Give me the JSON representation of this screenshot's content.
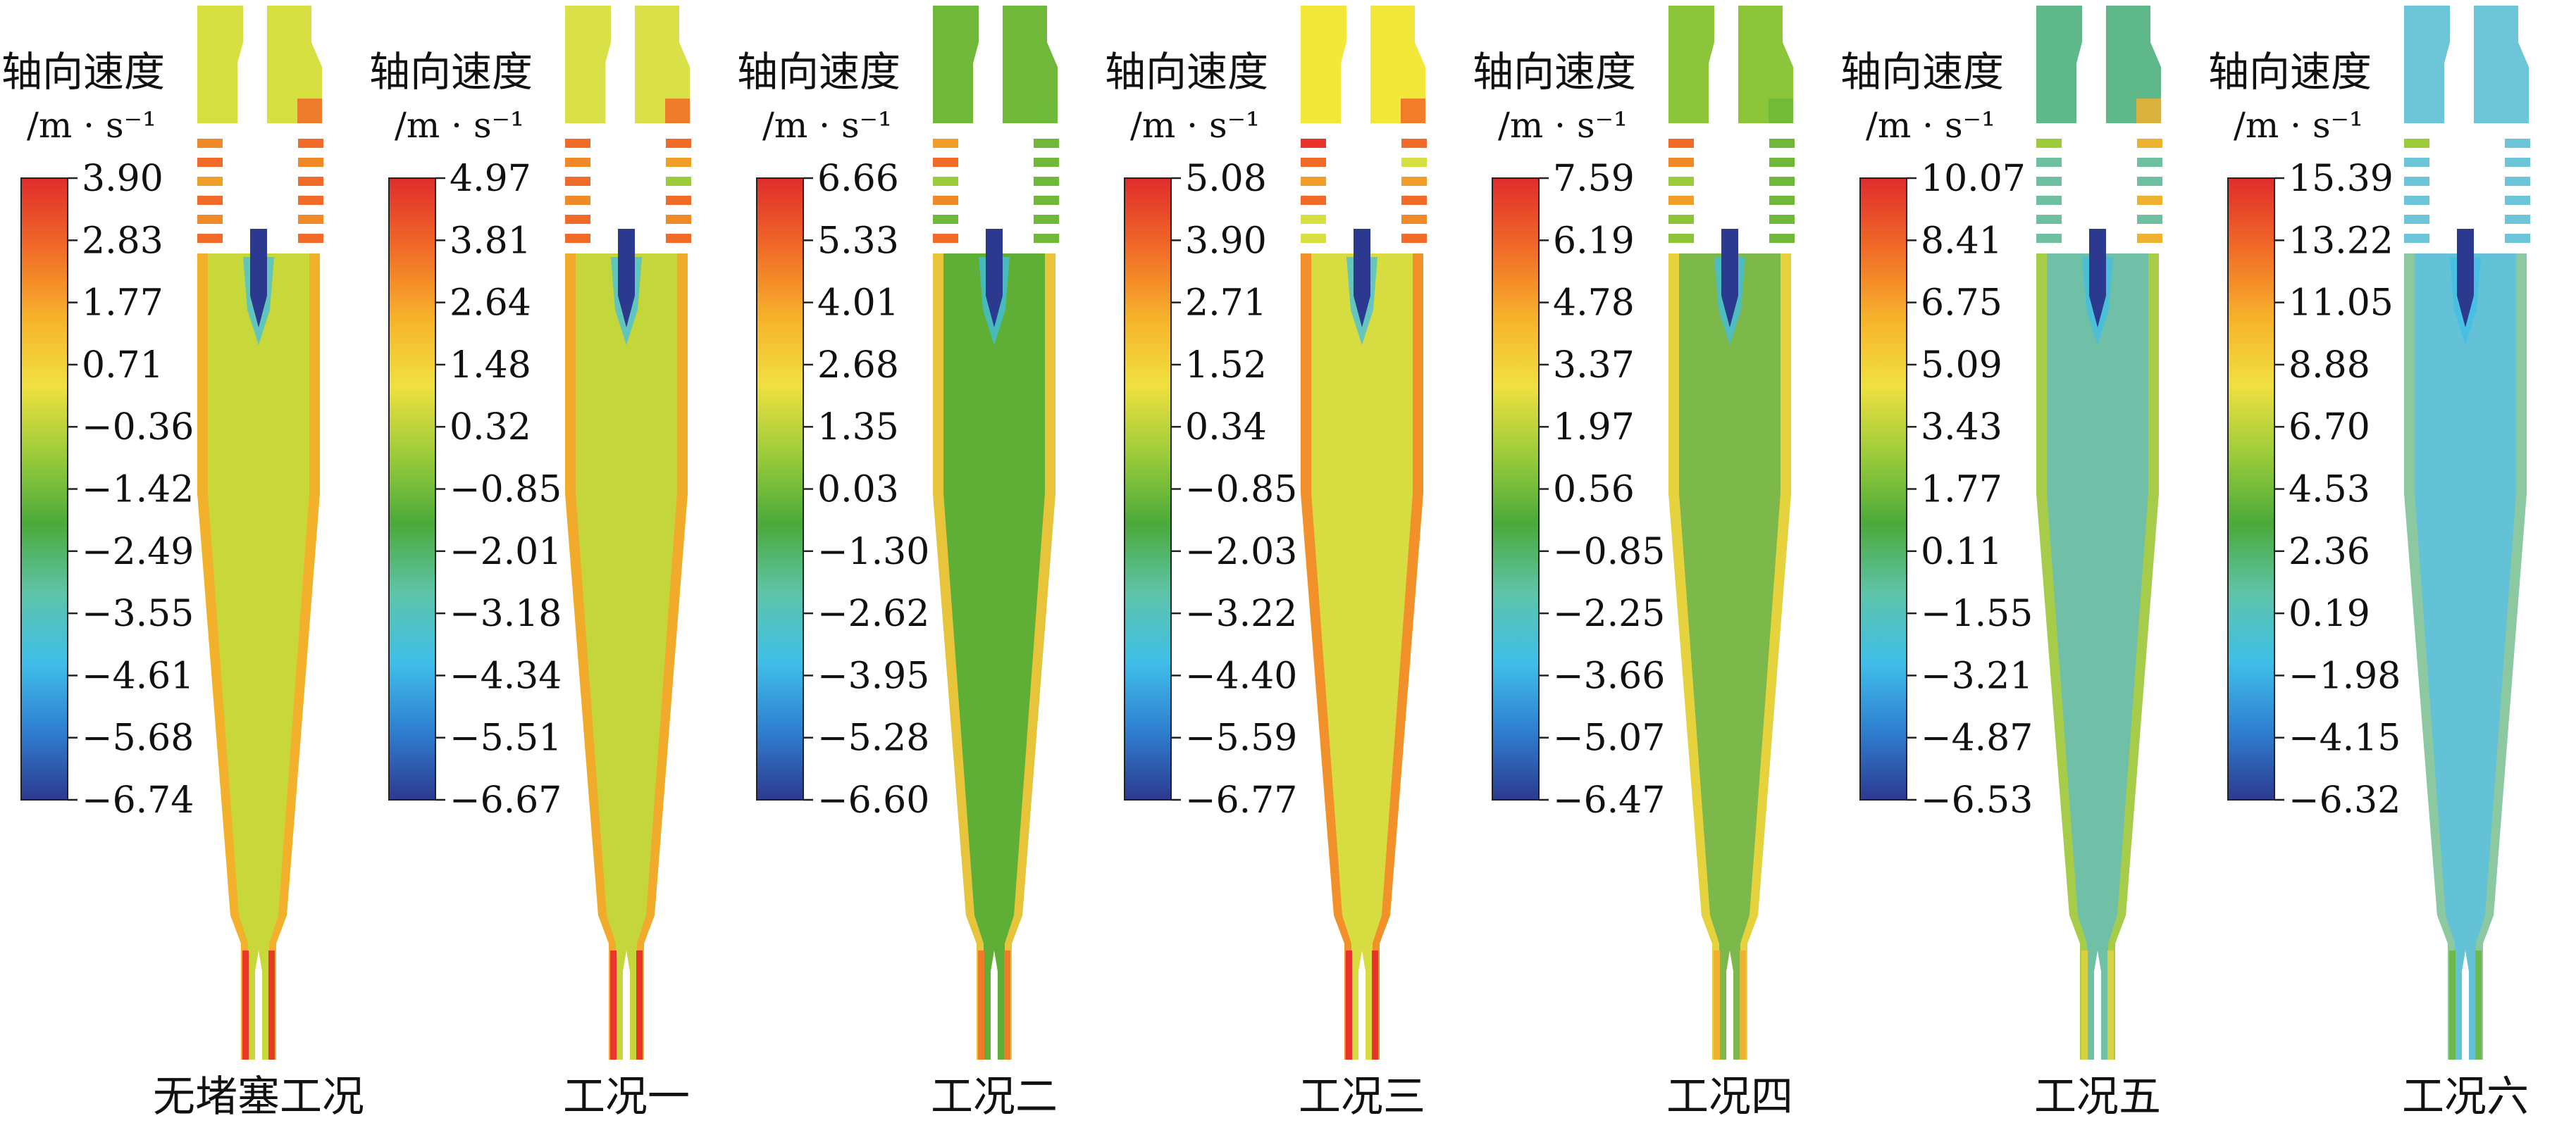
{
  "legend_title": "轴向速度",
  "legend_unit": "/m · s⁻¹",
  "colormap": [
    "#2b3a8f",
    "#2f7fd0",
    "#3fbfe8",
    "#5ec4a8",
    "#4aaa3a",
    "#9ccc3a",
    "#f0e040",
    "#f7b02a",
    "#f06a28",
    "#e02c2c"
  ],
  "panels": [
    {
      "label": "无堵塞工况",
      "ticks": [
        "3.90",
        "2.83",
        "1.77",
        "0.71",
        "−0.36",
        "−1.42",
        "−2.49",
        "−3.55",
        "−4.61",
        "−5.68",
        "−6.74"
      ],
      "body_color": "#c8d83a",
      "wall_color": "#f3b02a",
      "apex_color": "#e83a26",
      "inlet_color": "#d7e041",
      "top_color": "#d7e041",
      "slot_left": [
        "#f08a28",
        "#f06a28",
        "#f0a02a",
        "#f06a28",
        "#f08a28",
        "#f06a28"
      ],
      "slot_right": [
        "#f06a28",
        "#f08a28",
        "#f06a28",
        "#f06a28",
        "#f08a28",
        "#f06a28"
      ]
    },
    {
      "label": "工况一",
      "ticks": [
        "4.97",
        "3.81",
        "2.64",
        "1.48",
        "0.32",
        "−0.85",
        "−2.01",
        "−3.18",
        "−4.34",
        "−5.51",
        "−6.67"
      ],
      "body_color": "#c4d63c",
      "wall_color": "#f2aa2a",
      "apex_color": "#e8362a",
      "inlet_color": "#d9e048",
      "top_color": "#d9e048",
      "slot_left": [
        "#f06a28",
        "#f08a28",
        "#f06a28",
        "#f08a28",
        "#f06a28",
        "#f06a28"
      ],
      "slot_right": [
        "#f06a28",
        "#f0a02a",
        "#9ccc3a",
        "#f06a28",
        "#f08a28",
        "#f06a28"
      ]
    },
    {
      "label": "工况二",
      "ticks": [
        "6.66",
        "5.33",
        "4.01",
        "2.68",
        "1.35",
        "0.03",
        "−1.30",
        "−2.62",
        "−3.95",
        "−5.28",
        "−6.60"
      ],
      "body_color": "#5fae36",
      "wall_color": "#e8c43a",
      "apex_color": "#f07a2a",
      "inlet_color": "#6fb83a",
      "top_color": "#6fb83a",
      "slot_left": [
        "#f0a02a",
        "#f06a28",
        "#9ccc3a",
        "#f08a28",
        "#6fb83a",
        "#f06a28"
      ],
      "slot_right": [
        "#6fb83a",
        "#6fb83a",
        "#6fb83a",
        "#6fb83a",
        "#6fb83a",
        "#6fb83a"
      ]
    },
    {
      "label": "工况三",
      "ticks": [
        "5.08",
        "3.90",
        "2.71",
        "1.52",
        "0.34",
        "−0.85",
        "−2.03",
        "−3.22",
        "−4.40",
        "−5.59",
        "−6.77"
      ],
      "body_color": "#d7dc40",
      "wall_color": "#f2902a",
      "apex_color": "#e8322a",
      "inlet_color": "#f3e83a",
      "top_color": "#f3e83a",
      "slot_left": [
        "#e8322a",
        "#f06a28",
        "#f0a02a",
        "#f06a28",
        "#d7e041",
        "#d7e041"
      ],
      "slot_right": [
        "#f06a28",
        "#d7e041",
        "#f0a02a",
        "#f06a28",
        "#f08a28",
        "#f06a28"
      ]
    },
    {
      "label": "工况四",
      "ticks": [
        "7.59",
        "6.19",
        "4.78",
        "3.37",
        "1.97",
        "0.56",
        "−0.85",
        "−2.25",
        "−3.66",
        "−5.07",
        "−6.47"
      ],
      "body_color": "#7cb84a",
      "wall_color": "#e6d23c",
      "apex_color": "#f0b030",
      "inlet_color": "#8cc43a",
      "top_color": "#8cc43a",
      "slot_left": [
        "#f06a28",
        "#f08a28",
        "#9ccc3a",
        "#f0a02a",
        "#8cc43a",
        "#8cc43a"
      ],
      "slot_right": [
        "#6fb83a",
        "#6fb83a",
        "#6fb83a",
        "#6fb83a",
        "#6fb83a",
        "#6fb83a"
      ]
    },
    {
      "label": "工况五",
      "ticks": [
        "10.07",
        "8.41",
        "6.75",
        "5.09",
        "3.43",
        "1.77",
        "0.11",
        "−1.55",
        "−3.21",
        "−4.87",
        "−6.53"
      ],
      "body_color": "#70c0a8",
      "wall_color": "#a6cc4a",
      "apex_color": "#d8d240",
      "inlet_color": "#5fb88a",
      "top_color": "#5fb88a",
      "slot_left": [
        "#9ccc3a",
        "#6fc0a0",
        "#6fc0a0",
        "#6fc0a0",
        "#6fc0a0",
        "#6fc0a0"
      ],
      "slot_right": [
        "#f0b030",
        "#6fc0a0",
        "#6fc0a0",
        "#f0b030",
        "#6fc0a0",
        "#f0b030"
      ]
    },
    {
      "label": "工况六",
      "ticks": [
        "15.39",
        "13.22",
        "11.05",
        "8.88",
        "6.70",
        "4.53",
        "2.36",
        "0.19",
        "−1.98",
        "−4.15",
        "−6.32"
      ],
      "body_color": "#64c2d6",
      "wall_color": "#8cc8a0",
      "apex_color": "#6fb84a",
      "inlet_color": "#6cc6d8",
      "top_color": "#6cc6d8",
      "slot_left": [
        "#9ccc3a",
        "#6cc6d8",
        "#6cc6d8",
        "#6cc6d8",
        "#6cc6d8",
        "#6cc6d8"
      ],
      "slot_right": [
        "#6cc6d8",
        "#6cc6d8",
        "#6cc6d8",
        "#6cc6d8",
        "#6cc6d8",
        "#6cc6d8"
      ]
    }
  ]
}
